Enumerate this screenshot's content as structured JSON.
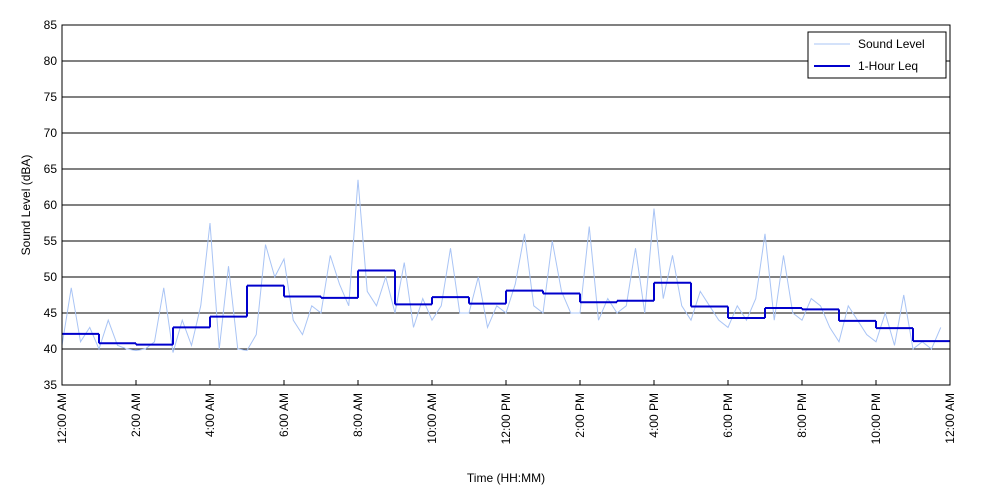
{
  "chart_data": {
    "type": "line",
    "xlabel": "Time (HH:MM)",
    "ylabel": "Sound Level (dBA)",
    "xlim": [
      0,
      24
    ],
    "xticks": [
      {
        "value": 0,
        "label": "12:00 AM"
      },
      {
        "value": 2,
        "label": "2:00 AM"
      },
      {
        "value": 4,
        "label": "4:00 AM"
      },
      {
        "value": 6,
        "label": "6:00 AM"
      },
      {
        "value": 8,
        "label": "8:00 AM"
      },
      {
        "value": 10,
        "label": "10:00 AM"
      },
      {
        "value": 12,
        "label": "12:00 PM"
      },
      {
        "value": 14,
        "label": "2:00 PM"
      },
      {
        "value": 16,
        "label": "4:00 PM"
      },
      {
        "value": 18,
        "label": "6:00 PM"
      },
      {
        "value": 20,
        "label": "8:00 PM"
      },
      {
        "value": 22,
        "label": "10:00 PM"
      },
      {
        "value": 24,
        "label": "12:00 AM"
      }
    ],
    "ylim": [
      35,
      85
    ],
    "yticks": [
      35,
      40,
      45,
      50,
      55,
      60,
      65,
      70,
      75,
      80,
      85
    ],
    "grid": "y",
    "legend": "upper right",
    "series": [
      {
        "name": "Sound Level",
        "color": "#a9c4f5",
        "step": false,
        "x": [
          0,
          0.25,
          0.5,
          0.75,
          1,
          1.25,
          1.5,
          1.75,
          2,
          2.25,
          2.5,
          2.75,
          3,
          3.25,
          3.5,
          3.75,
          4,
          4.25,
          4.5,
          4.75,
          5,
          5.25,
          5.5,
          5.75,
          6,
          6.25,
          6.5,
          6.75,
          7,
          7.25,
          7.5,
          7.75,
          8,
          8.25,
          8.5,
          8.75,
          9,
          9.25,
          9.5,
          9.75,
          10,
          10.25,
          10.5,
          10.75,
          11,
          11.25,
          11.5,
          11.75,
          12,
          12.25,
          12.5,
          12.75,
          13,
          13.25,
          13.5,
          13.75,
          14,
          14.25,
          14.5,
          14.75,
          15,
          15.25,
          15.5,
          15.75,
          16,
          16.25,
          16.5,
          16.75,
          17,
          17.25,
          17.5,
          17.75,
          18,
          18.25,
          18.5,
          18.75,
          19,
          19.25,
          19.5,
          19.75,
          20,
          20.25,
          20.5,
          20.75,
          21,
          21.25,
          21.5,
          21.75,
          22,
          22.25,
          22.5,
          22.75,
          23,
          23.25,
          23.5,
          23.75
        ],
        "values": [
          40.5,
          48.5,
          41,
          43,
          40,
          44,
          40.5,
          40,
          39.8,
          40,
          41,
          48.5,
          39.5,
          44,
          40.5,
          46,
          57.5,
          40,
          51.5,
          40,
          39.8,
          42,
          54.5,
          50,
          52.5,
          44,
          42,
          46,
          45,
          53,
          49,
          46,
          63.5,
          48,
          46,
          50,
          45,
          52,
          43,
          47,
          44,
          46,
          54,
          45,
          45,
          50,
          43,
          46,
          45,
          49,
          56,
          46,
          45,
          55,
          48,
          45,
          45,
          57,
          44,
          47,
          45,
          46,
          54,
          45,
          59.5,
          47,
          53,
          46,
          44,
          48,
          46,
          44,
          43,
          46,
          44,
          47,
          56,
          44,
          53,
          45,
          44,
          47,
          46,
          43,
          41,
          46,
          44,
          42,
          41,
          45,
          40.5,
          47.5,
          40,
          41,
          40,
          43
        ]
      },
      {
        "name": "1-Hour Leq",
        "color": "#0000cc",
        "step": true,
        "x": [
          0,
          1,
          2,
          3,
          4,
          5,
          6,
          7,
          8,
          9,
          10,
          11,
          12,
          13,
          14,
          15,
          16,
          17,
          18,
          19,
          20,
          21,
          22,
          23
        ],
        "values": [
          42.1,
          40.8,
          40.6,
          43.0,
          44.5,
          48.8,
          47.3,
          47.1,
          50.9,
          46.2,
          47.2,
          46.3,
          48.1,
          47.7,
          46.5,
          46.7,
          49.2,
          45.9,
          44.3,
          45.7,
          45.5,
          43.9,
          42.9,
          41.1
        ]
      }
    ]
  }
}
